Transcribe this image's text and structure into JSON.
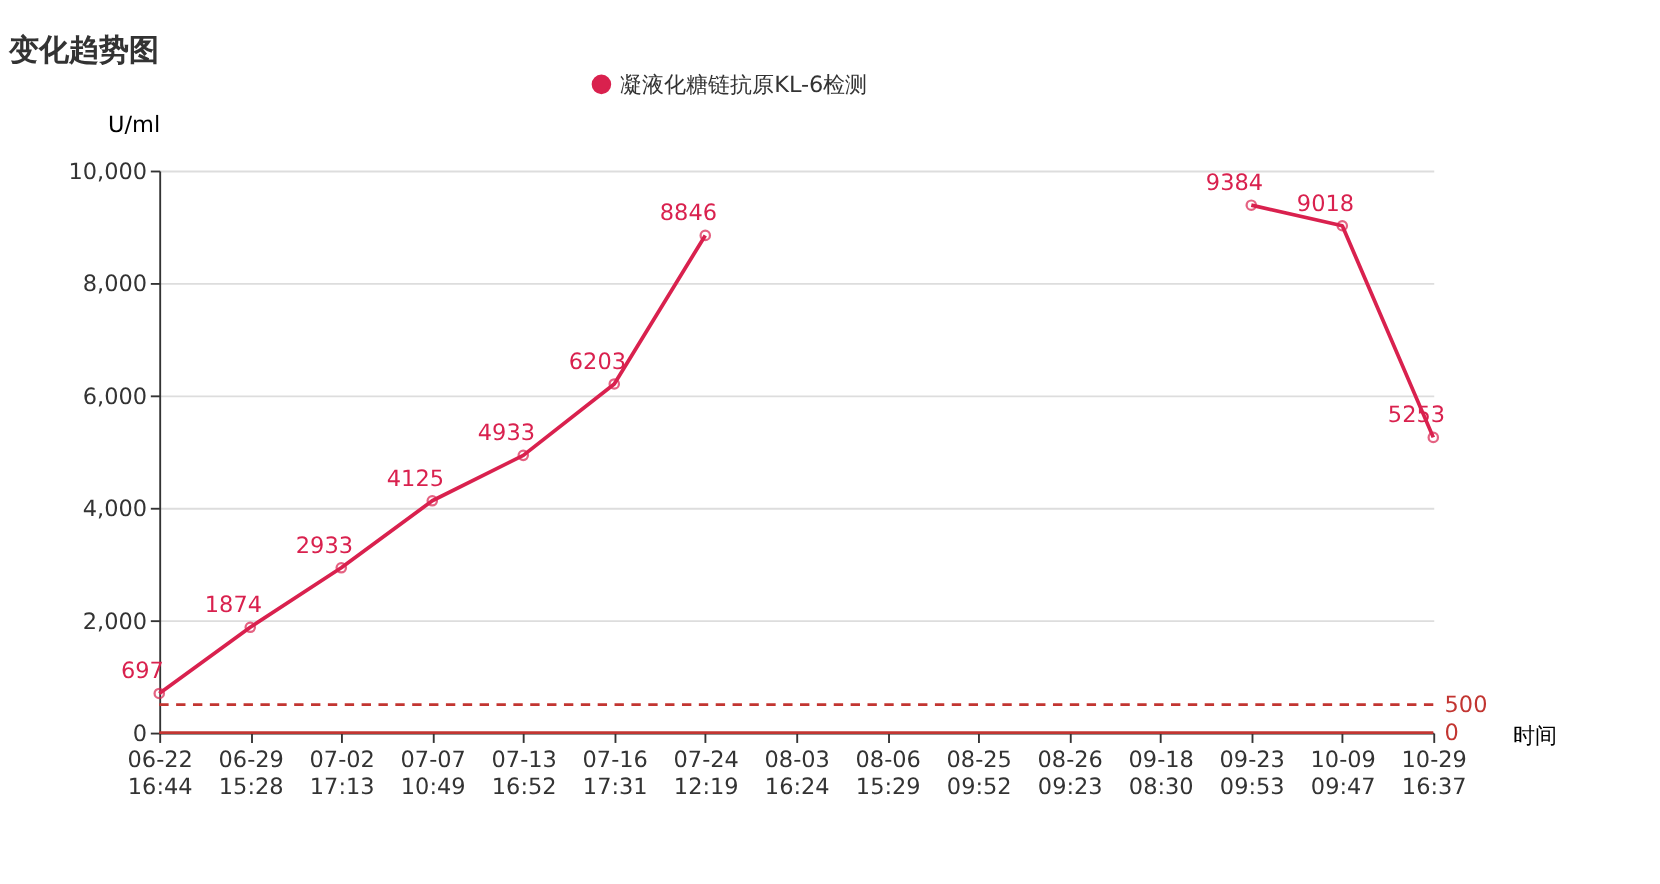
{
  "chart_data": {
    "type": "line",
    "title": "变化趋势图",
    "ylabel": "U/ml",
    "xlabel": "时间",
    "categories": [
      "06-22 16:44",
      "06-29 15:28",
      "07-02 17:13",
      "07-07 10:49",
      "07-13 16:52",
      "07-16 17:31",
      "07-24 12:19",
      "08-03 16:24",
      "08-06 15:29",
      "08-25 09:52",
      "08-26 09:23",
      "09-18 08:30",
      "09-23 09:53",
      "10-09 09:47",
      "10-29 16:37"
    ],
    "series": [
      {
        "name": "凝液化糖链抗原KL-6检测",
        "color": "#d9214e",
        "values": [
          697,
          1874,
          2933,
          4125,
          4933,
          6203,
          8846,
          null,
          null,
          null,
          null,
          null,
          9384,
          9018,
          5253
        ]
      }
    ],
    "ylim": [
      0,
      10000
    ],
    "yticks": [
      0,
      {
        "value": 2000,
        "label": "2,000"
      },
      {
        "value": 4000,
        "label": "4,000"
      },
      {
        "value": 6000,
        "label": "6,000"
      },
      {
        "value": 8000,
        "label": "8,000"
      },
      {
        "value": 10000,
        "label": "10,000"
      }
    ],
    "ref_lines": [
      {
        "axis": "y",
        "value": 500,
        "label": "500",
        "color": "#c23531",
        "line_style": "dashed"
      },
      {
        "axis": "y",
        "value": 0,
        "label": "0",
        "color": "#c23531",
        "line_style": "solid"
      }
    ],
    "data_labels": true,
    "grid": "y",
    "legend": "top",
    "marker": "circle",
    "line_style": "solid"
  }
}
